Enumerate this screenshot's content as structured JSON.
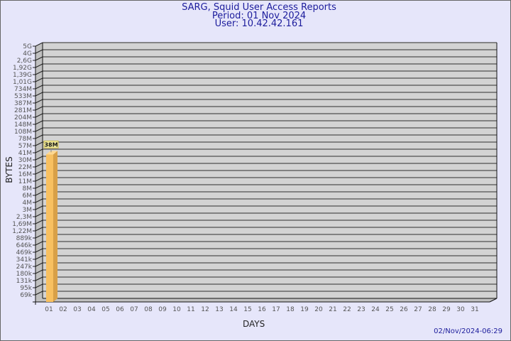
{
  "chart_data": {
    "type": "bar",
    "title": [
      "SARG, Squid User Access Reports",
      "Period: 01 Nov 2024",
      "User: 10.42.42.161"
    ],
    "xlabel": "DAYS",
    "ylabel": "BYTES",
    "y_scale": "log",
    "y_ticks": [
      "5G",
      "4G",
      "2,6G",
      "1,92G",
      "1,39G",
      "1,01G",
      "734M",
      "533M",
      "387M",
      "281M",
      "204M",
      "148M",
      "108M",
      "78M",
      "57M",
      "41M",
      "30M",
      "22M",
      "16M",
      "11M",
      "8M",
      "6M",
      "4M",
      "3M",
      "2,3M",
      "1,69M",
      "1,22M",
      "889k",
      "646k",
      "469k",
      "341k",
      "247k",
      "180k",
      "131k",
      "95k",
      "69k"
    ],
    "categories": [
      "01",
      "02",
      "03",
      "04",
      "05",
      "06",
      "07",
      "08",
      "09",
      "10",
      "11",
      "12",
      "13",
      "14",
      "15",
      "16",
      "17",
      "18",
      "19",
      "20",
      "21",
      "22",
      "23",
      "24",
      "25",
      "26",
      "27",
      "28",
      "29",
      "30",
      "31"
    ],
    "values": [
      {
        "day": "01",
        "bytes": 38000000,
        "label": "38M"
      }
    ],
    "grid": true,
    "colors": {
      "bar_front": "#f8c060",
      "bar_side": "#d8a048",
      "wall": "#d3d3d3",
      "side_wall": "#c0c0c0",
      "grid": "#666666",
      "title": "#1c1c9c",
      "label_box": "#f4eea0"
    }
  },
  "footer": {
    "timestamp": "02/Nov/2024-06:29"
  }
}
